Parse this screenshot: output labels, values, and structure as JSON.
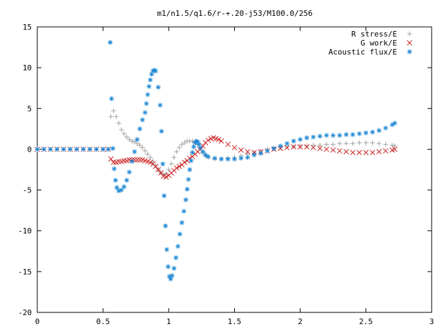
{
  "chart_data": {
    "type": "scatter",
    "title": "m1/n1.5/q1.6/r-+.20-j53/M100.0/256",
    "xlabel": "",
    "ylabel": "",
    "xlim": [
      0,
      3
    ],
    "ylim": [
      -20,
      15
    ],
    "x_ticks": [
      "0",
      "0.5",
      "1",
      "1.5",
      "2",
      "2.5",
      "3"
    ],
    "y_ticks": [
      "15",
      "10",
      "5",
      "0",
      "-5",
      "-10",
      "-15",
      "-20"
    ],
    "grid": false,
    "legend_position": "top-right",
    "series": [
      {
        "name": "R stress/E",
        "marker": "plus",
        "color": "#a0a0a0",
        "points": [
          [
            0.0,
            0
          ],
          [
            0.05,
            0
          ],
          [
            0.1,
            0
          ],
          [
            0.15,
            0
          ],
          [
            0.2,
            0
          ],
          [
            0.25,
            0
          ],
          [
            0.3,
            0
          ],
          [
            0.35,
            0
          ],
          [
            0.4,
            0
          ],
          [
            0.45,
            0
          ],
          [
            0.5,
            0
          ],
          [
            0.54,
            0
          ],
          [
            0.56,
            4.0
          ],
          [
            0.58,
            4.7
          ],
          [
            0.6,
            4.0
          ],
          [
            0.62,
            3.2
          ],
          [
            0.64,
            2.4
          ],
          [
            0.66,
            1.9
          ],
          [
            0.68,
            1.5
          ],
          [
            0.7,
            1.2
          ],
          [
            0.72,
            1.0
          ],
          [
            0.74,
            0.9
          ],
          [
            0.76,
            0.7
          ],
          [
            0.78,
            0.5
          ],
          [
            0.8,
            0.2
          ],
          [
            0.82,
            -0.2
          ],
          [
            0.84,
            -0.6
          ],
          [
            0.86,
            -1.0
          ],
          [
            0.88,
            -1.5
          ],
          [
            0.9,
            -2.0
          ],
          [
            0.92,
            -2.5
          ],
          [
            0.94,
            -2.9
          ],
          [
            0.96,
            -3.1
          ],
          [
            0.98,
            -3.0
          ],
          [
            1.0,
            -2.5
          ],
          [
            1.02,
            -1.8
          ],
          [
            1.04,
            -1.0
          ],
          [
            1.06,
            -0.3
          ],
          [
            1.08,
            0.2
          ],
          [
            1.1,
            0.6
          ],
          [
            1.12,
            0.8
          ],
          [
            1.14,
            1.0
          ],
          [
            1.16,
            1.0
          ],
          [
            1.18,
            1.0
          ],
          [
            1.2,
            0.9
          ],
          [
            1.22,
            0.6
          ],
          [
            1.24,
            0.1
          ],
          [
            1.26,
            -0.4
          ],
          [
            1.28,
            -0.8
          ],
          [
            1.3,
            -1.0
          ],
          [
            1.35,
            -1.2
          ],
          [
            1.4,
            -1.2
          ],
          [
            1.45,
            -1.1
          ],
          [
            1.5,
            -1.0
          ],
          [
            1.55,
            -0.8
          ],
          [
            1.6,
            -0.6
          ],
          [
            1.65,
            -0.4
          ],
          [
            1.7,
            -0.2
          ],
          [
            1.75,
            0.0
          ],
          [
            1.8,
            0.1
          ],
          [
            1.85,
            0.2
          ],
          [
            1.9,
            0.3
          ],
          [
            1.95,
            0.3
          ],
          [
            2.0,
            0.4
          ],
          [
            2.05,
            0.4
          ],
          [
            2.1,
            0.5
          ],
          [
            2.15,
            0.5
          ],
          [
            2.2,
            0.6
          ],
          [
            2.25,
            0.6
          ],
          [
            2.3,
            0.7
          ],
          [
            2.35,
            0.7
          ],
          [
            2.4,
            0.7
          ],
          [
            2.45,
            0.8
          ],
          [
            2.5,
            0.8
          ],
          [
            2.55,
            0.8
          ],
          [
            2.6,
            0.7
          ],
          [
            2.65,
            0.6
          ],
          [
            2.7,
            0.5
          ],
          [
            2.72,
            0.4
          ]
        ]
      },
      {
        "name": "G work/E",
        "marker": "cross",
        "color": "#cc2222",
        "points": [
          [
            0.0,
            0
          ],
          [
            0.05,
            0
          ],
          [
            0.1,
            0
          ],
          [
            0.15,
            0
          ],
          [
            0.2,
            0
          ],
          [
            0.25,
            0
          ],
          [
            0.3,
            0
          ],
          [
            0.35,
            0
          ],
          [
            0.4,
            0
          ],
          [
            0.45,
            0
          ],
          [
            0.5,
            0
          ],
          [
            0.54,
            0
          ],
          [
            0.56,
            -1.2
          ],
          [
            0.58,
            -1.6
          ],
          [
            0.6,
            -1.6
          ],
          [
            0.62,
            -1.5
          ],
          [
            0.64,
            -1.5
          ],
          [
            0.66,
            -1.4
          ],
          [
            0.68,
            -1.4
          ],
          [
            0.7,
            -1.3
          ],
          [
            0.72,
            -1.3
          ],
          [
            0.74,
            -1.3
          ],
          [
            0.76,
            -1.3
          ],
          [
            0.78,
            -1.3
          ],
          [
            0.8,
            -1.3
          ],
          [
            0.82,
            -1.4
          ],
          [
            0.84,
            -1.5
          ],
          [
            0.86,
            -1.6
          ],
          [
            0.88,
            -1.8
          ],
          [
            0.9,
            -2.1
          ],
          [
            0.92,
            -2.5
          ],
          [
            0.94,
            -2.9
          ],
          [
            0.96,
            -3.3
          ],
          [
            0.98,
            -3.4
          ],
          [
            1.0,
            -3.2
          ],
          [
            1.02,
            -2.9
          ],
          [
            1.04,
            -2.6
          ],
          [
            1.06,
            -2.3
          ],
          [
            1.08,
            -2.1
          ],
          [
            1.1,
            -1.9
          ],
          [
            1.12,
            -1.6
          ],
          [
            1.14,
            -1.4
          ],
          [
            1.16,
            -1.1
          ],
          [
            1.18,
            -0.9
          ],
          [
            1.2,
            -0.6
          ],
          [
            1.22,
            -0.3
          ],
          [
            1.24,
            0.0
          ],
          [
            1.26,
            0.4
          ],
          [
            1.28,
            0.8
          ],
          [
            1.3,
            1.1
          ],
          [
            1.32,
            1.3
          ],
          [
            1.34,
            1.4
          ],
          [
            1.36,
            1.3
          ],
          [
            1.38,
            1.2
          ],
          [
            1.4,
            1.0
          ],
          [
            1.45,
            0.6
          ],
          [
            1.5,
            0.2
          ],
          [
            1.55,
            -0.1
          ],
          [
            1.6,
            -0.3
          ],
          [
            1.65,
            -0.4
          ],
          [
            1.7,
            -0.3
          ],
          [
            1.75,
            -0.2
          ],
          [
            1.8,
            0.0
          ],
          [
            1.85,
            0.1
          ],
          [
            1.9,
            0.2
          ],
          [
            1.95,
            0.3
          ],
          [
            2.0,
            0.3
          ],
          [
            2.05,
            0.3
          ],
          [
            2.1,
            0.2
          ],
          [
            2.15,
            0.1
          ],
          [
            2.2,
            0.0
          ],
          [
            2.25,
            -0.1
          ],
          [
            2.3,
            -0.2
          ],
          [
            2.35,
            -0.3
          ],
          [
            2.4,
            -0.4
          ],
          [
            2.45,
            -0.4
          ],
          [
            2.5,
            -0.4
          ],
          [
            2.55,
            -0.4
          ],
          [
            2.6,
            -0.3
          ],
          [
            2.65,
            -0.2
          ],
          [
            2.7,
            -0.1
          ],
          [
            2.72,
            0.0
          ]
        ]
      },
      {
        "name": "Acoustic flux/E",
        "marker": "star",
        "color": "#1a86d4",
        "points": [
          [
            0.0,
            0
          ],
          [
            0.05,
            0
          ],
          [
            0.1,
            0
          ],
          [
            0.15,
            0
          ],
          [
            0.2,
            0
          ],
          [
            0.25,
            0
          ],
          [
            0.3,
            0
          ],
          [
            0.35,
            0
          ],
          [
            0.4,
            0
          ],
          [
            0.45,
            0
          ],
          [
            0.5,
            0
          ],
          [
            0.54,
            0
          ],
          [
            0.555,
            13.1
          ],
          [
            0.565,
            6.2
          ],
          [
            0.575,
            0.1
          ],
          [
            0.585,
            -2.4
          ],
          [
            0.595,
            -3.8
          ],
          [
            0.605,
            -4.7
          ],
          [
            0.62,
            -5.1
          ],
          [
            0.64,
            -5.0
          ],
          [
            0.66,
            -4.6
          ],
          [
            0.68,
            -3.8
          ],
          [
            0.7,
            -2.8
          ],
          [
            0.72,
            -1.5
          ],
          [
            0.74,
            -0.3
          ],
          [
            0.76,
            1.2
          ],
          [
            0.78,
            2.5
          ],
          [
            0.8,
            3.6
          ],
          [
            0.82,
            4.5
          ],
          [
            0.83,
            5.6
          ],
          [
            0.84,
            6.7
          ],
          [
            0.85,
            7.7
          ],
          [
            0.86,
            8.5
          ],
          [
            0.87,
            9.2
          ],
          [
            0.88,
            9.6
          ],
          [
            0.89,
            9.7
          ],
          [
            0.9,
            9.6
          ],
          [
            0.92,
            7.6
          ],
          [
            0.935,
            5.4
          ],
          [
            0.945,
            2.2
          ],
          [
            0.955,
            -1.8
          ],
          [
            0.965,
            -5.7
          ],
          [
            0.975,
            -9.4
          ],
          [
            0.985,
            -12.3
          ],
          [
            0.995,
            -14.4
          ],
          [
            1.005,
            -15.6
          ],
          [
            1.015,
            -15.9
          ],
          [
            1.025,
            -15.5
          ],
          [
            1.04,
            -14.6
          ],
          [
            1.055,
            -13.3
          ],
          [
            1.07,
            -11.9
          ],
          [
            1.085,
            -10.4
          ],
          [
            1.1,
            -9.0
          ],
          [
            1.115,
            -7.6
          ],
          [
            1.13,
            -6.2
          ],
          [
            1.14,
            -4.9
          ],
          [
            1.15,
            -3.7
          ],
          [
            1.16,
            -2.5
          ],
          [
            1.17,
            -1.4
          ],
          [
            1.18,
            -0.4
          ],
          [
            1.19,
            0.3
          ],
          [
            1.2,
            0.8
          ],
          [
            1.21,
            1.0
          ],
          [
            1.22,
            0.9
          ],
          [
            1.23,
            0.6
          ],
          [
            1.24,
            0.2
          ],
          [
            1.26,
            -0.3
          ],
          [
            1.28,
            -0.7
          ],
          [
            1.3,
            -0.9
          ],
          [
            1.35,
            -1.1
          ],
          [
            1.4,
            -1.2
          ],
          [
            1.45,
            -1.2
          ],
          [
            1.5,
            -1.2
          ],
          [
            1.55,
            -1.1
          ],
          [
            1.6,
            -1.0
          ],
          [
            1.65,
            -0.7
          ],
          [
            1.7,
            -0.5
          ],
          [
            1.75,
            -0.2
          ],
          [
            1.8,
            0.1
          ],
          [
            1.85,
            0.4
          ],
          [
            1.9,
            0.7
          ],
          [
            1.95,
            1.0
          ],
          [
            2.0,
            1.2
          ],
          [
            2.05,
            1.4
          ],
          [
            2.1,
            1.5
          ],
          [
            2.15,
            1.6
          ],
          [
            2.2,
            1.7
          ],
          [
            2.25,
            1.7
          ],
          [
            2.3,
            1.7
          ],
          [
            2.35,
            1.8
          ],
          [
            2.4,
            1.8
          ],
          [
            2.45,
            1.9
          ],
          [
            2.5,
            2.0
          ],
          [
            2.55,
            2.1
          ],
          [
            2.6,
            2.3
          ],
          [
            2.65,
            2.6
          ],
          [
            2.7,
            3.0
          ],
          [
            2.72,
            3.2
          ]
        ]
      }
    ]
  }
}
